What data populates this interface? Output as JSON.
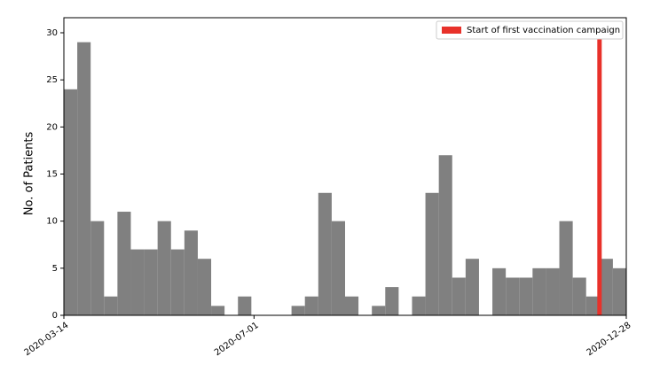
{
  "chart_data": {
    "type": "histogram",
    "ylabel": "No. of Patients",
    "bins": [
      0,
      1,
      2,
      3,
      4,
      5,
      6,
      7,
      8,
      9,
      10,
      11,
      12,
      13,
      14,
      15,
      16,
      17,
      18,
      19,
      20,
      21,
      22,
      23,
      24,
      25,
      26,
      27,
      28,
      29,
      30,
      31,
      32,
      33,
      34,
      35,
      36,
      37,
      38,
      39,
      40,
      41,
      42
    ],
    "values": [
      24,
      29,
      10,
      2,
      11,
      7,
      7,
      10,
      7,
      9,
      6,
      1,
      0,
      2,
      0,
      0,
      0,
      1,
      2,
      13,
      10,
      2,
      0,
      1,
      3,
      0,
      2,
      13,
      17,
      4,
      6,
      0,
      5,
      4,
      4,
      5,
      5,
      10,
      4,
      2,
      6,
      5
    ],
    "color": "#808080",
    "xlim": [
      0,
      42
    ],
    "ylim": [
      0,
      31.6
    ],
    "yticks": [
      0,
      5,
      10,
      15,
      20,
      25,
      30
    ],
    "xticks": [
      {
        "value": 0,
        "label": "2020-03-14"
      },
      {
        "value": 14.2,
        "label": "2020-07-01"
      },
      {
        "value": 42,
        "label": "2020-12-28"
      }
    ],
    "marker": {
      "name": "Start of first vaccination campaign",
      "x": 40,
      "value": 30,
      "color": "#e8312a"
    },
    "legend": "upper right"
  }
}
